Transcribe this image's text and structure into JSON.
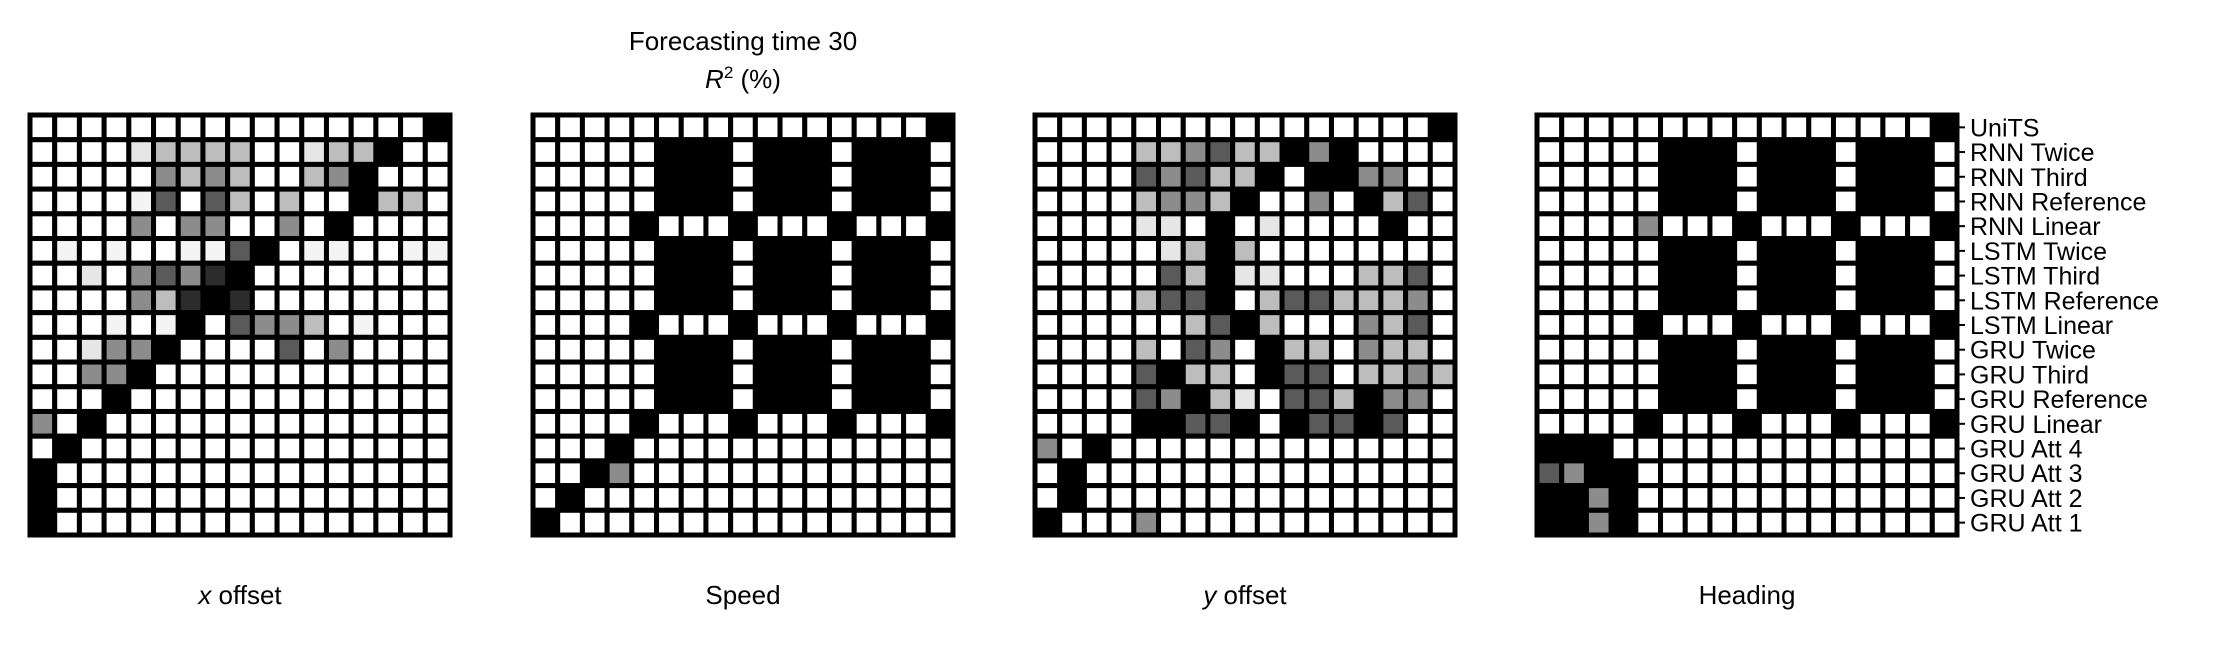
{
  "title": "Forecasting time 30",
  "subtitle_base": "R",
  "subtitle_exp": "2",
  "subtitle_unit": " (%)",
  "row_labels": [
    "UniTS",
    "RNN Twice",
    "RNN Third",
    "RNN Reference",
    "RNN Linear",
    "LSTM Twice",
    "LSTM Third",
    "LSTM Reference",
    "LSTM Linear",
    "GRU Twice",
    "GRU Third",
    "GRU Reference",
    "GRU Linear",
    "GRU Att 4",
    "GRU Att 3",
    "GRU Att 2",
    "GRU Att 1"
  ],
  "colors": {
    "high": "#000000",
    "low": "#ffffff",
    "grid": "#000000"
  },
  "chart_data": [
    {
      "type": "heatmap",
      "xlabel_italic": "x",
      "xlabel_rest": " offset",
      "rows": [
        "0000000000000000K",
        "0000ABBBB00ABBK00",
        "00000CBCB00BCK000",
        "00001D0DB0B00KBB0",
        "0000C0CC00C0K0000",
        "01010011DK0110011",
        "00A0CDCEK00000000",
        "0000CBEKE00000000",
        "000101K0DCCB01000",
        "00ACCK0000D0C0000",
        "00CCK000000000000",
        "000K0000000000000",
        "C0K00000000000000",
        "0K000000000000000",
        "K0000000000000000",
        "K0000000000000000",
        "K0000000000000000"
      ]
    },
    {
      "type": "heatmap",
      "xlabel_italic": "",
      "xlabel_rest": "Speed",
      "rows": [
        "0000000000000000K",
        "00000KKK0KKK0KKK0",
        "00000KKK0KKK0KKK0",
        "00000KKK0KKK0KKK0",
        "0000K000K000K000K",
        "00000KKK0KKK0KKK0",
        "00000KKK0KKK0KKK0",
        "00000KKK0KKK0KKK0",
        "0000K000K000K000K",
        "00000KKK0KKK0KKK0",
        "00000KKK0KKK0KKK0",
        "00000KKK0KKK0KKK0",
        "0000K000K000K000K",
        "000K0000000000000",
        "00KC0000000000000",
        "0K000000000000000",
        "K0000000000000000"
      ]
    },
    {
      "type": "heatmap",
      "xlabel_italic": "y",
      "xlabel_rest": " offset",
      "rows": [
        "0000000000000000K",
        "0000BBCDBBKCK0000",
        "0000DCDBBK0KKCC00",
        "0000BCCBK00C0KBD0",
        "0000AA0K0A0000K00",
        "00000ABKB00000000",
        "00000DBKAA000BBD0",
        "0000BDDK0BDDBBBC0",
        "000000BDKB000CBD0",
        "0000B0DC0KBB0CBB0",
        "0000DKBB0KDD0BBCB",
        "0000DCKBA0DDBKCC0",
        "0000KKDDK0KDDKD00",
        "C0K00000000000000",
        "0K000000000000000",
        "0K000000000000000",
        "K000C000000000000"
      ]
    },
    {
      "type": "heatmap",
      "xlabel_italic": "",
      "xlabel_rest": "Heading",
      "rows": [
        "0000000000000000K",
        "00000KKK0KKK0KKK0",
        "00000KKK0KKK0KKK0",
        "00000KKK0KKK0KKK0",
        "0000C000K000K000K",
        "00000KKK0KKK0KKK0",
        "00000KKK0KKK0KKK0",
        "00000KKK0KKK0KKK0",
        "0000K000K000K000K",
        "00000KKK0KKK0KKK0",
        "00000KKK0KKK0KKK0",
        "00000KKK0KKK0KKK0",
        "0000K000K000K000K",
        "KKK00000000000000",
        "DCKK0000000000000",
        "KKCK0000000000000",
        "KKCK0000000000000"
      ]
    }
  ]
}
